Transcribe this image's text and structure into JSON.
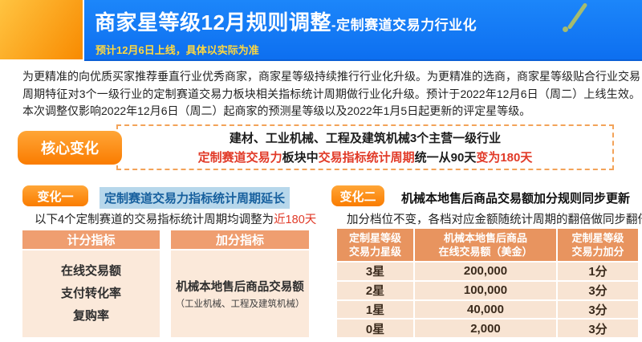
{
  "header": {
    "title_main": "商家星等级12月规则调整",
    "title_sub": "-定制赛道交易力行业化",
    "subtitle": "预计12月6日上线，具体以实际为准"
  },
  "intro": {
    "text": "为更精准的向优质买家推荐垂直行业优秀商家，商家星等级持续推行行业化升级。为更精准的选商，商家星等级贴合行业交易周期特征对3个一级行业的定制赛道交易力板块相关指标统计周期做行业化升级。预计于2022年12月6日（周二）上线生效。本次调整仅影响2022年12月6日（周二）起商家的预测星等级以及2022年1月5日起更新的评定星等级。"
  },
  "core_change": {
    "badge": "核心变化",
    "line1": "建材、工业机械、工程及建筑机械3个主营一级行业",
    "line2_segments": [
      {
        "text": "定制赛道交易力",
        "red": true
      },
      {
        "text": "板块中",
        "red": false
      },
      {
        "text": "交易指标统计周期",
        "red": true
      },
      {
        "text": "统一从90天",
        "red": false
      },
      {
        "text": "变为180天",
        "red": true
      }
    ]
  },
  "change1": {
    "badge": "变化一",
    "title": "定制赛道交易力指标统计周期延长",
    "desc_prefix": "以下4个定制赛道的交易指标统计周期均调整为",
    "desc_highlight": "近180天",
    "score_box": {
      "header": "计分指标",
      "items": [
        "在线交易额",
        "支付转化率",
        "复购率"
      ]
    },
    "bonus_box": {
      "header": "加分指标",
      "item": "机械本地售后商品交易额",
      "note": "（工业机械、工程及建筑机械）"
    }
  },
  "change2": {
    "badge": "变化二",
    "title": "机械本地售后商品交易额加分规则同步更新",
    "desc": "加分档位不变，各档对应金额随统计周期的翻倍做同步翻倍",
    "table": {
      "headers": [
        [
          "定制星等级",
          "交易力星级"
        ],
        [
          "机械本地售后商品",
          "在线交易额（美金）"
        ],
        [
          "定制星等级",
          "交易力加分"
        ]
      ],
      "rows": [
        [
          "3星",
          "200,000",
          "1分"
        ],
        [
          "2星",
          "100,000",
          "3分"
        ],
        [
          "1星",
          "40,000",
          "3分"
        ],
        [
          "0星",
          "2,000",
          "3分"
        ]
      ]
    }
  },
  "colors": {
    "banner_blue": "#1379f2",
    "accent_orange": "#fa7c00",
    "gold": "#ffd83f",
    "red": "#e13a28",
    "salmon_header": "#ef9e70",
    "peach_body": "#fbe9da",
    "table_header": "#e8945f",
    "table_row": "#f8e4d3",
    "highlight_blue_bg": "#b7d7eb",
    "highlight_blue_text": "#17609e"
  }
}
